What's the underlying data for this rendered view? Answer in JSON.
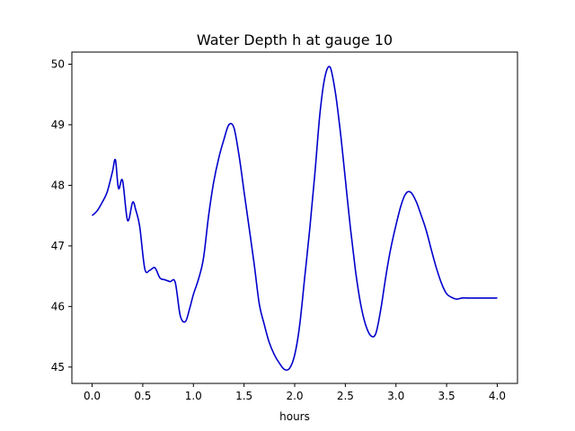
{
  "chart_data": {
    "type": "line",
    "title": "Water Depth h at gauge 10",
    "xlabel": "hours",
    "ylabel": "",
    "xlim": [
      -0.2,
      4.2
    ],
    "ylim": [
      44.73,
      50.2
    ],
    "xticks": [
      0.0,
      0.5,
      1.0,
      1.5,
      2.0,
      2.5,
      3.0,
      3.5,
      4.0
    ],
    "xtick_labels": [
      "0.0",
      "0.5",
      "1.0",
      "1.5",
      "2.0",
      "2.5",
      "3.0",
      "3.5",
      "4.0"
    ],
    "yticks": [
      45,
      46,
      47,
      48,
      49,
      50
    ],
    "ytick_labels": [
      "45",
      "46",
      "47",
      "48",
      "49",
      "50"
    ],
    "grid": false,
    "legend": "none",
    "series": [
      {
        "color": "#0000cc",
        "x": [
          0.0,
          0.05,
          0.1,
          0.15,
          0.2,
          0.23,
          0.26,
          0.3,
          0.35,
          0.4,
          0.43,
          0.47,
          0.52,
          0.57,
          0.62,
          0.67,
          0.72,
          0.77,
          0.82,
          0.87,
          0.92,
          0.96,
          1.0,
          1.05,
          1.1,
          1.15,
          1.2,
          1.25,
          1.3,
          1.35,
          1.4,
          1.45,
          1.5,
          1.55,
          1.6,
          1.65,
          1.7,
          1.75,
          1.8,
          1.85,
          1.9,
          1.95,
          2.0,
          2.05,
          2.1,
          2.15,
          2.2,
          2.25,
          2.3,
          2.35,
          2.4,
          2.45,
          2.5,
          2.55,
          2.6,
          2.65,
          2.7,
          2.75,
          2.8,
          2.85,
          2.9,
          2.95,
          3.0,
          3.05,
          3.1,
          3.15,
          3.2,
          3.25,
          3.3,
          3.35,
          3.4,
          3.45,
          3.5,
          3.55,
          3.6,
          3.65,
          3.7,
          3.75,
          3.8,
          3.85,
          3.9,
          3.95,
          4.0
        ],
        "y": [
          47.5,
          47.58,
          47.72,
          47.9,
          48.22,
          48.42,
          47.95,
          48.08,
          47.42,
          47.72,
          47.6,
          47.32,
          46.62,
          46.6,
          46.64,
          46.47,
          46.44,
          46.41,
          46.4,
          45.85,
          45.75,
          45.95,
          46.2,
          46.45,
          46.8,
          47.5,
          48.05,
          48.45,
          48.75,
          49.0,
          48.95,
          48.5,
          47.9,
          47.3,
          46.7,
          46.05,
          45.7,
          45.4,
          45.2,
          45.06,
          44.96,
          44.98,
          45.2,
          45.7,
          46.5,
          47.3,
          48.2,
          49.2,
          49.8,
          49.95,
          49.55,
          48.9,
          48.1,
          47.3,
          46.6,
          46.05,
          45.7,
          45.52,
          45.55,
          45.95,
          46.5,
          46.97,
          47.34,
          47.67,
          47.87,
          47.88,
          47.73,
          47.5,
          47.25,
          46.93,
          46.63,
          46.38,
          46.21,
          46.15,
          46.12,
          46.14,
          46.14,
          46.14,
          46.14,
          46.14,
          46.14,
          46.14,
          46.14
        ]
      }
    ]
  }
}
